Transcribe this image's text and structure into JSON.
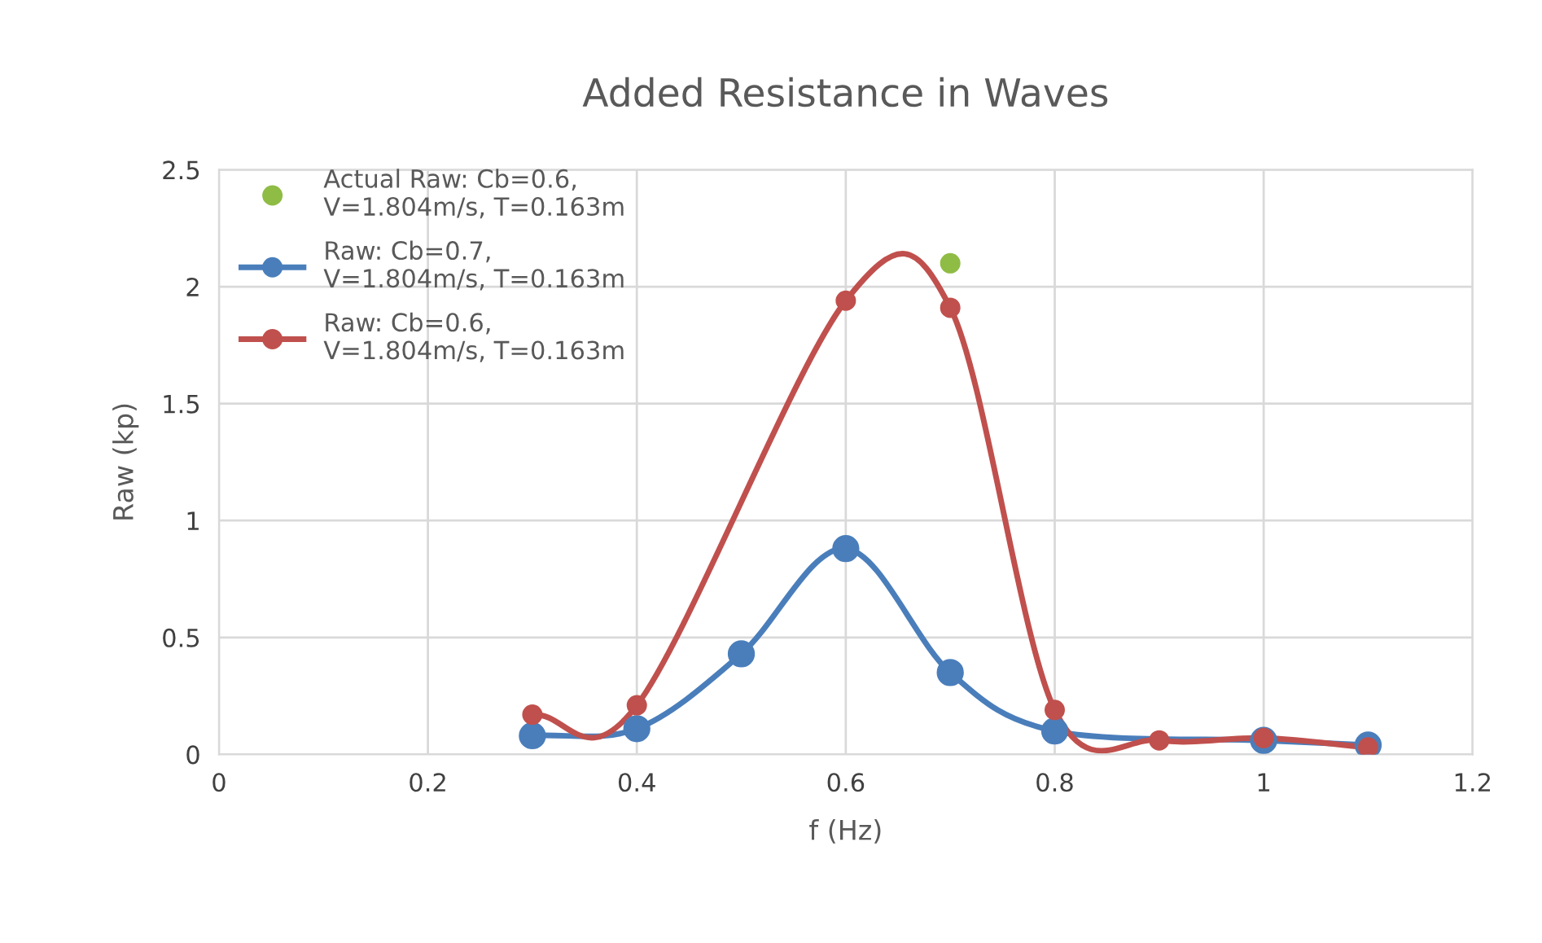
{
  "chart_data": {
    "type": "line",
    "title": "Added Resistance in Waves",
    "xlabel": "f (Hz)",
    "ylabel": "Raw (kp)",
    "xlim": [
      0,
      1.2
    ],
    "xticks": [
      0,
      0.2,
      0.4,
      0.6,
      0.8,
      1,
      1.2
    ],
    "ylim": [
      0,
      2.5
    ],
    "yticks": [
      0,
      0.5,
      1,
      1.5,
      2,
      2.5
    ],
    "grid": true,
    "legend": "top left",
    "marker": "circle",
    "line_style": "solid",
    "series": [
      {
        "name": "Actual Raw: Cb=0.6,\nV=1.804m/s, T=0.163m",
        "type": "scatter",
        "color": "#8fbc45",
        "x": [
          0.7
        ],
        "values": [
          2.1
        ]
      },
      {
        "name": "Raw: Cb=0.7,\nV=1.804m/s, T=0.163m",
        "color": "#4a7ebb",
        "x": [
          0.3,
          0.4,
          0.5,
          0.6,
          0.7,
          0.8,
          1.0,
          1.1
        ],
        "values": [
          0.08,
          0.11,
          0.43,
          0.88,
          0.35,
          0.1,
          0.06,
          0.04
        ]
      },
      {
        "name": "Raw: Cb=0.6,\nV=1.804m/s, T=0.163m",
        "color": "#c0504d",
        "x": [
          0.3,
          0.4,
          0.6,
          0.7,
          0.8,
          0.9,
          1.0,
          1.1
        ],
        "values": [
          0.17,
          0.21,
          1.94,
          1.91,
          0.19,
          0.06,
          0.07,
          0.03
        ]
      }
    ]
  }
}
